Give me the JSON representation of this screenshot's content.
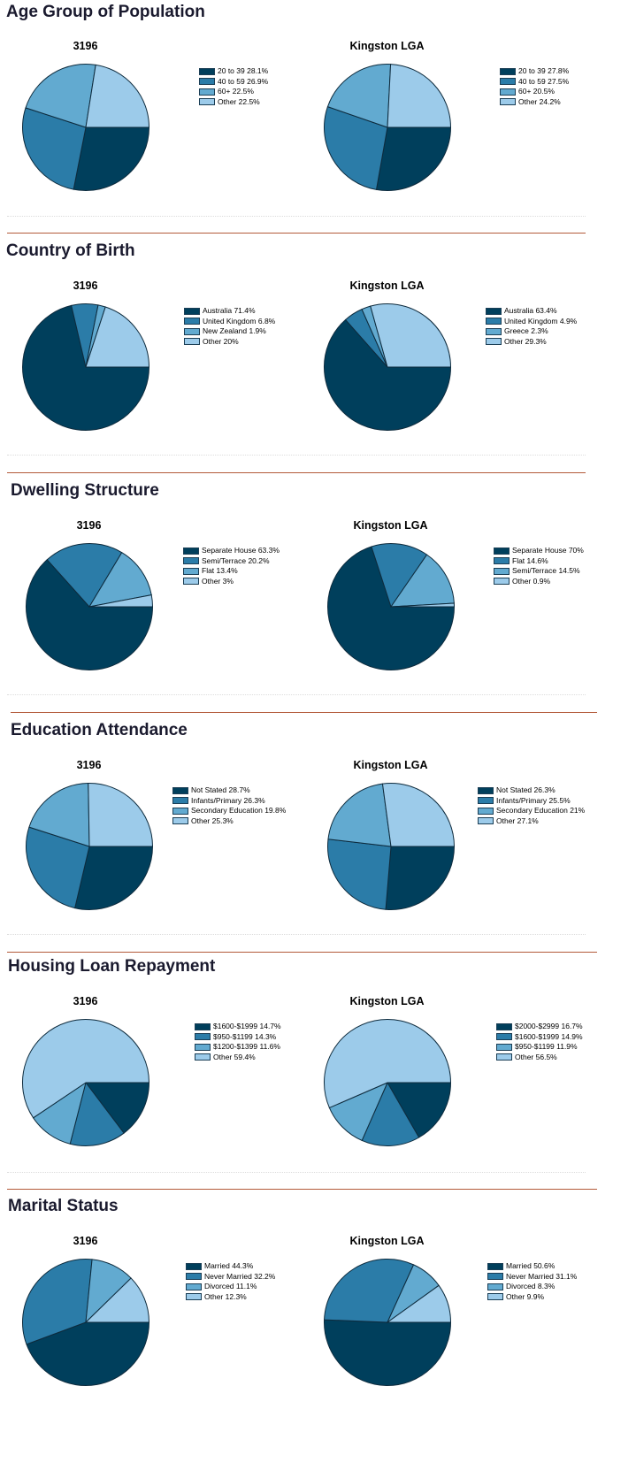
{
  "colors": [
    "#003f5c",
    "#2b7ca8",
    "#62aad0",
    "#9ccbea"
  ],
  "chart_data": [
    {
      "type": "pie",
      "title": "Age Group of Population",
      "panels": [
        {
          "title": "3196",
          "slices": [
            {
              "label": "20 to 39",
              "display": "28.1%",
              "value": 28.1
            },
            {
              "label": "40 to 59",
              "display": "26.9%",
              "value": 26.9
            },
            {
              "label": "60+",
              "display": "22.5%",
              "value": 22.5
            },
            {
              "label": "Other",
              "display": "22.5%",
              "value": 22.5
            }
          ]
        },
        {
          "title": "Kingston LGA",
          "slices": [
            {
              "label": "20 to 39",
              "display": "27.8%",
              "value": 27.8
            },
            {
              "label": "40 to 59",
              "display": "27.5%",
              "value": 27.5
            },
            {
              "label": "60+",
              "display": "20.5%",
              "value": 20.5
            },
            {
              "label": "Other",
              "display": "24.2%",
              "value": 24.2
            }
          ]
        }
      ]
    },
    {
      "type": "pie",
      "title": "Country of Birth",
      "panels": [
        {
          "title": "3196",
          "slices": [
            {
              "label": "Australia",
              "display": "71.4%",
              "value": 71.4
            },
            {
              "label": "United Kingdom",
              "display": "6.8%",
              "value": 6.8
            },
            {
              "label": "New Zealand",
              "display": "1.9%",
              "value": 1.9
            },
            {
              "label": "Other",
              "display": "20%",
              "value": 20
            }
          ]
        },
        {
          "title": "Kingston LGA",
          "slices": [
            {
              "label": "Australia",
              "display": "63.4%",
              "value": 63.4
            },
            {
              "label": "United Kingdom",
              "display": "4.9%",
              "value": 4.9
            },
            {
              "label": "Greece",
              "display": "2.3%",
              "value": 2.3
            },
            {
              "label": "Other",
              "display": "29.3%",
              "value": 29.3
            }
          ]
        }
      ]
    },
    {
      "type": "pie",
      "title": "Dwelling Structure",
      "panels": [
        {
          "title": "3196",
          "slices": [
            {
              "label": "Separate House",
              "display": "63.3%",
              "value": 63.3
            },
            {
              "label": "Semi/Terrace",
              "display": "20.2%",
              "value": 20.2
            },
            {
              "label": "Flat",
              "display": "13.4%",
              "value": 13.4
            },
            {
              "label": "Other",
              "display": "3%",
              "value": 3
            }
          ]
        },
        {
          "title": "Kingston LGA",
          "slices": [
            {
              "label": "Separate House",
              "display": "70%",
              "value": 70
            },
            {
              "label": "Flat",
              "display": "14.6%",
              "value": 14.6
            },
            {
              "label": "Semi/Terrace",
              "display": "14.5%",
              "value": 14.5
            },
            {
              "label": "Other",
              "display": "0.9%",
              "value": 0.9
            }
          ]
        }
      ]
    },
    {
      "type": "pie",
      "title": "Education Attendance",
      "panels": [
        {
          "title": "3196",
          "slices": [
            {
              "label": "Not Stated",
              "display": "28.7%",
              "value": 28.7
            },
            {
              "label": "Infants/Primary",
              "display": "26.3%",
              "value": 26.3
            },
            {
              "label": "Secondary Education",
              "display": "19.8%",
              "value": 19.8
            },
            {
              "label": "Other",
              "display": "25.3%",
              "value": 25.3
            }
          ]
        },
        {
          "title": "Kingston LGA",
          "slices": [
            {
              "label": "Not Stated",
              "display": "26.3%",
              "value": 26.3
            },
            {
              "label": "Infants/Primary",
              "display": "25.5%",
              "value": 25.5
            },
            {
              "label": "Secondary Education",
              "display": "21%",
              "value": 21
            },
            {
              "label": "Other",
              "display": "27.1%",
              "value": 27.1
            }
          ]
        }
      ]
    },
    {
      "type": "pie",
      "title": "Housing Loan Repayment",
      "panels": [
        {
          "title": "3196",
          "slices": [
            {
              "label": "$1600-$1999",
              "display": "14.7%",
              "value": 14.7
            },
            {
              "label": "$950-$1199",
              "display": "14.3%",
              "value": 14.3
            },
            {
              "label": "$1200-$1399",
              "display": "11.6%",
              "value": 11.6
            },
            {
              "label": "Other",
              "display": "59.4%",
              "value": 59.4
            }
          ]
        },
        {
          "title": "Kingston LGA",
          "slices": [
            {
              "label": "$2000-$2999",
              "display": "16.7%",
              "value": 16.7
            },
            {
              "label": "$1600-$1999",
              "display": "14.9%",
              "value": 14.9
            },
            {
              "label": "$950-$1199",
              "display": "11.9%",
              "value": 11.9
            },
            {
              "label": "Other",
              "display": "56.5%",
              "value": 56.5
            }
          ]
        }
      ]
    },
    {
      "type": "pie",
      "title": "Marital Status",
      "panels": [
        {
          "title": "3196",
          "slices": [
            {
              "label": "Married",
              "display": "44.3%",
              "value": 44.3
            },
            {
              "label": "Never Married",
              "display": "32.2%",
              "value": 32.2
            },
            {
              "label": "Divorced",
              "display": "11.1%",
              "value": 11.1
            },
            {
              "label": "Other",
              "display": "12.3%",
              "value": 12.3
            }
          ]
        },
        {
          "title": "Kingston LGA",
          "slices": [
            {
              "label": "Married",
              "display": "50.6%",
              "value": 50.6
            },
            {
              "label": "Never Married",
              "display": "31.1%",
              "value": 31.1
            },
            {
              "label": "Divorced",
              "display": "8.3%",
              "value": 8.3
            },
            {
              "label": "Other",
              "display": "9.9%",
              "value": 9.9
            }
          ]
        }
      ]
    }
  ]
}
